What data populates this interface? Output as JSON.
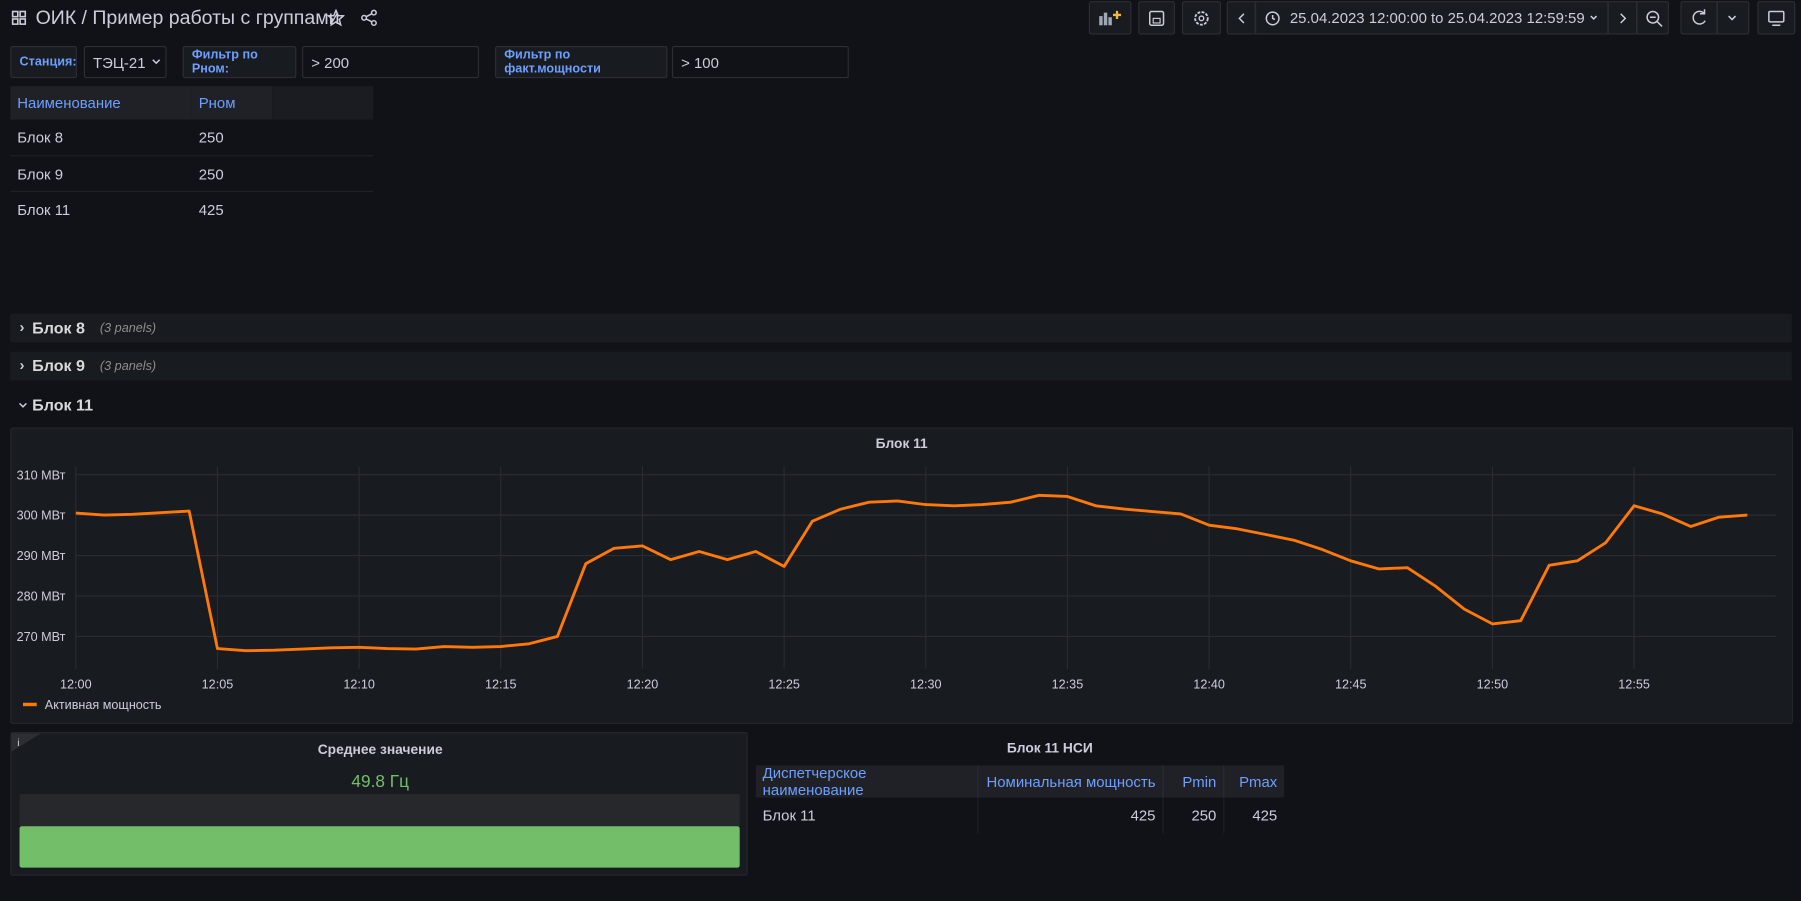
{
  "header": {
    "title": "ОИК",
    "subtitle": "/ Пример работы с группами",
    "time_range": "25.04.2023 12:00:00 to 25.04.2023 12:59:59"
  },
  "variables": [
    {
      "label": "Станция:",
      "value": "ТЭЦ-21"
    },
    {
      "label": "Фильтр по Рном:",
      "value": "> 200"
    },
    {
      "label": "Фильтр по факт.мощности",
      "value": "> 100"
    }
  ],
  "table": {
    "columns": [
      "Наименование",
      "Рном"
    ],
    "rows": [
      [
        "Блок 8",
        250
      ],
      [
        "Блок 9",
        250
      ],
      [
        "Блок 11",
        425
      ]
    ]
  },
  "rows": [
    {
      "title": "Блок 8",
      "note": "(3 panels)"
    },
    {
      "title": "Блок 9",
      "note": "(3 panels)"
    },
    {
      "title": "Блок 11"
    }
  ],
  "chart_data": {
    "type": "line",
    "title": "Блок 11",
    "x": [
      "12:00",
      "12:01",
      "12:02",
      "12:03",
      "12:04",
      "12:05",
      "12:06",
      "12:07",
      "12:08",
      "12:09",
      "12:10",
      "12:11",
      "12:12",
      "12:13",
      "12:14",
      "12:15",
      "12:16",
      "12:17",
      "12:18",
      "12:19",
      "12:20",
      "12:21",
      "12:22",
      "12:23",
      "12:24",
      "12:25",
      "12:26",
      "12:27",
      "12:28",
      "12:29",
      "12:30",
      "12:31",
      "12:32",
      "12:33",
      "12:34",
      "12:35",
      "12:36",
      "12:37",
      "12:38",
      "12:39",
      "12:40",
      "12:41",
      "12:42",
      "12:43",
      "12:44",
      "12:45",
      "12:46",
      "12:47",
      "12:48",
      "12:49",
      "12:50",
      "12:51",
      "12:52",
      "12:53",
      "12:54",
      "12:55",
      "12:56",
      "12:57",
      "12:58",
      "12:59"
    ],
    "series": [
      {
        "name": "Активная мощность",
        "color": "#ff780a",
        "values": [
          300.5,
          300,
          300.2,
          300.6,
          301,
          267,
          266.5,
          266.6,
          266.9,
          267.2,
          267.3,
          267,
          266.9,
          267.5,
          267.3,
          267.5,
          268.2,
          270,
          288,
          291.8,
          292.4,
          289,
          291,
          289,
          291,
          287.3,
          298.5,
          301.5,
          303.2,
          303.5,
          302.6,
          302.3,
          302.6,
          303.2,
          304.9,
          304.6,
          302.3,
          301.5,
          300.9,
          300.3,
          297.5,
          296.6,
          295.2,
          293.8,
          291.5,
          288.7,
          286.7,
          287,
          282.4,
          276.8,
          273.1,
          273.9,
          287.6,
          288.7,
          293.2,
          302.3,
          300.3,
          297.2,
          299.5,
          300
        ]
      }
    ],
    "ylim": [
      262,
      312
    ],
    "yticks": [
      {
        "value": 270,
        "label": "270 МВт"
      },
      {
        "value": 280,
        "label": "280 МВт"
      },
      {
        "value": 290,
        "label": "290 МВт"
      },
      {
        "value": 300,
        "label": "300 МВт"
      },
      {
        "value": 310,
        "label": "310 МВт"
      }
    ],
    "xticks": [
      "12:00",
      "12:05",
      "12:10",
      "12:15",
      "12:20",
      "12:25",
      "12:30",
      "12:35",
      "12:40",
      "12:45",
      "12:50",
      "12:55"
    ],
    "grid": true,
    "legend": "bottom-left"
  },
  "stat": {
    "title": "Среднее значение",
    "value": "49.8 Гц"
  },
  "nsi_table": {
    "title": "Блок 11 НСИ",
    "columns": [
      "Диспетчерское наименование",
      "Номинальная мощность",
      "Pmin",
      "Pmax"
    ],
    "rows": [
      [
        "Блок 11",
        425,
        250,
        425
      ]
    ]
  }
}
